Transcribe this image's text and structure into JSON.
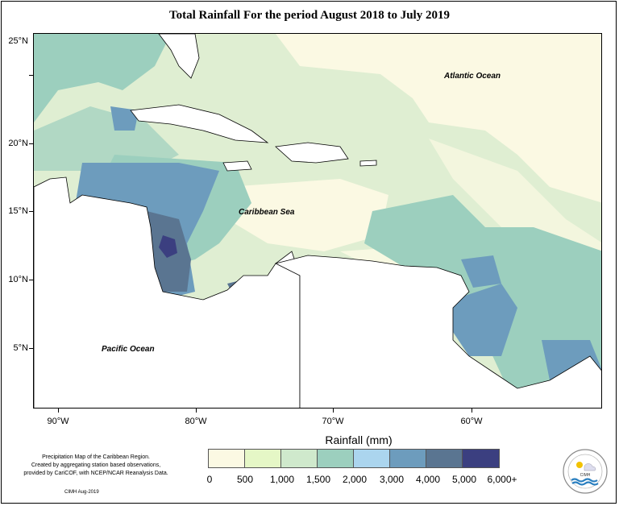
{
  "title": "Total Rainfall For the period August 2018 to July 2019",
  "map": {
    "lat_labels": [
      "25°N",
      "20°N",
      "15°N",
      "10°N",
      "5°N"
    ],
    "lon_labels": [
      "90°W",
      "80°W",
      "70°W",
      "60°W"
    ],
    "ocean_labels": {
      "atlantic": "Atlantic Ocean",
      "caribbean": "Caribbean Sea",
      "pacific": "Pacific Ocean"
    },
    "colors": {
      "ocean_base": "#dfeed2",
      "land": "#ffffff",
      "class_0": "#fbf9e3",
      "class_500": "#e5f7c6",
      "class_1000": "#cfe9cc",
      "class_1500": "#9ccfbe",
      "class_2000": "#abd5ee",
      "class_3000": "#6d9cbd",
      "class_4000": "#5a7591",
      "class_5000": "#3b3f80"
    }
  },
  "legend": {
    "title": "Rainfall (mm)",
    "labels": [
      "0",
      "500",
      "1,000",
      "1,500",
      "2,000",
      "3,000",
      "4,000",
      "5,000",
      "6,000+"
    ],
    "colors": [
      "#fbf9e3",
      "#e5f7c6",
      "#cfe9cc",
      "#9ccfbe",
      "#abd5ee",
      "#6d9cbd",
      "#5a7591",
      "#3b3f80"
    ]
  },
  "caption": {
    "line1": "Precipitation Map of the Caribbean Region.",
    "line2": "Created by aggregating station based observations,",
    "line3": "provided by CariCOF, with NCEP/NCAR Reanalysis Data.",
    "credit": "CIMH Aug-2019"
  },
  "logo": {
    "text": "CIMH"
  }
}
